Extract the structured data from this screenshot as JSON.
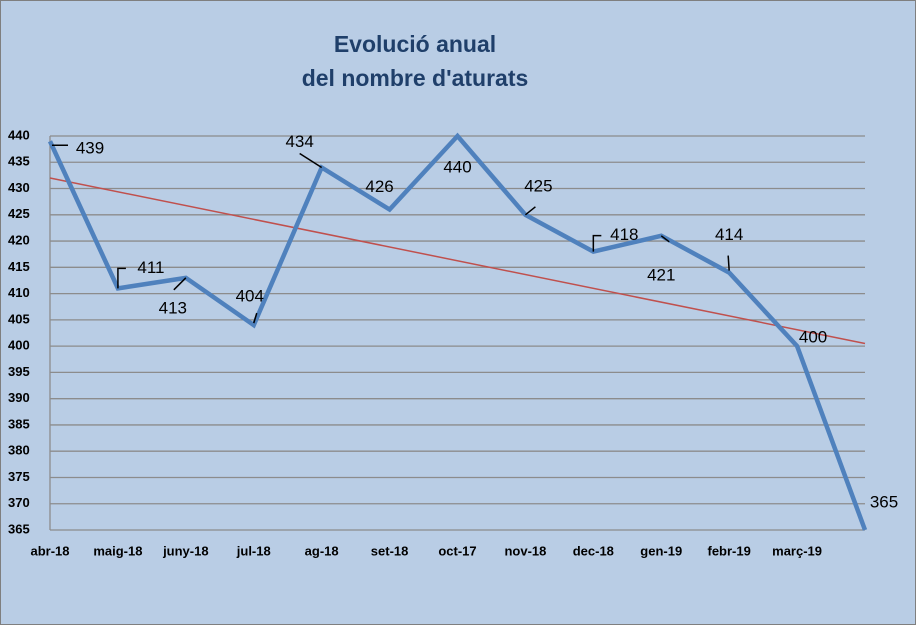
{
  "chart_data": {
    "type": "line",
    "title": [
      "Evolució anual",
      "del nombre d'aturats"
    ],
    "categories": [
      "abr-18",
      "maig-18",
      "juny-18",
      "jul-18",
      "ag-18",
      "set-18",
      "oct-17",
      "nov-18",
      "dec-18",
      "gen-19",
      "febr-19",
      "març-19",
      null
    ],
    "series": [
      {
        "color": "#4f81bd",
        "values": [
          439,
          411,
          413,
          404,
          434,
          426,
          440,
          425,
          418,
          421,
          414,
          400,
          365
        ]
      }
    ],
    "trendline": {
      "color": "#c0504d",
      "values": [
        432,
        400.5
      ]
    },
    "ylim": [
      365,
      440
    ],
    "yticks": [
      365,
      370,
      375,
      380,
      385,
      390,
      395,
      400,
      405,
      410,
      415,
      420,
      425,
      430,
      435,
      440
    ],
    "grid": true
  }
}
